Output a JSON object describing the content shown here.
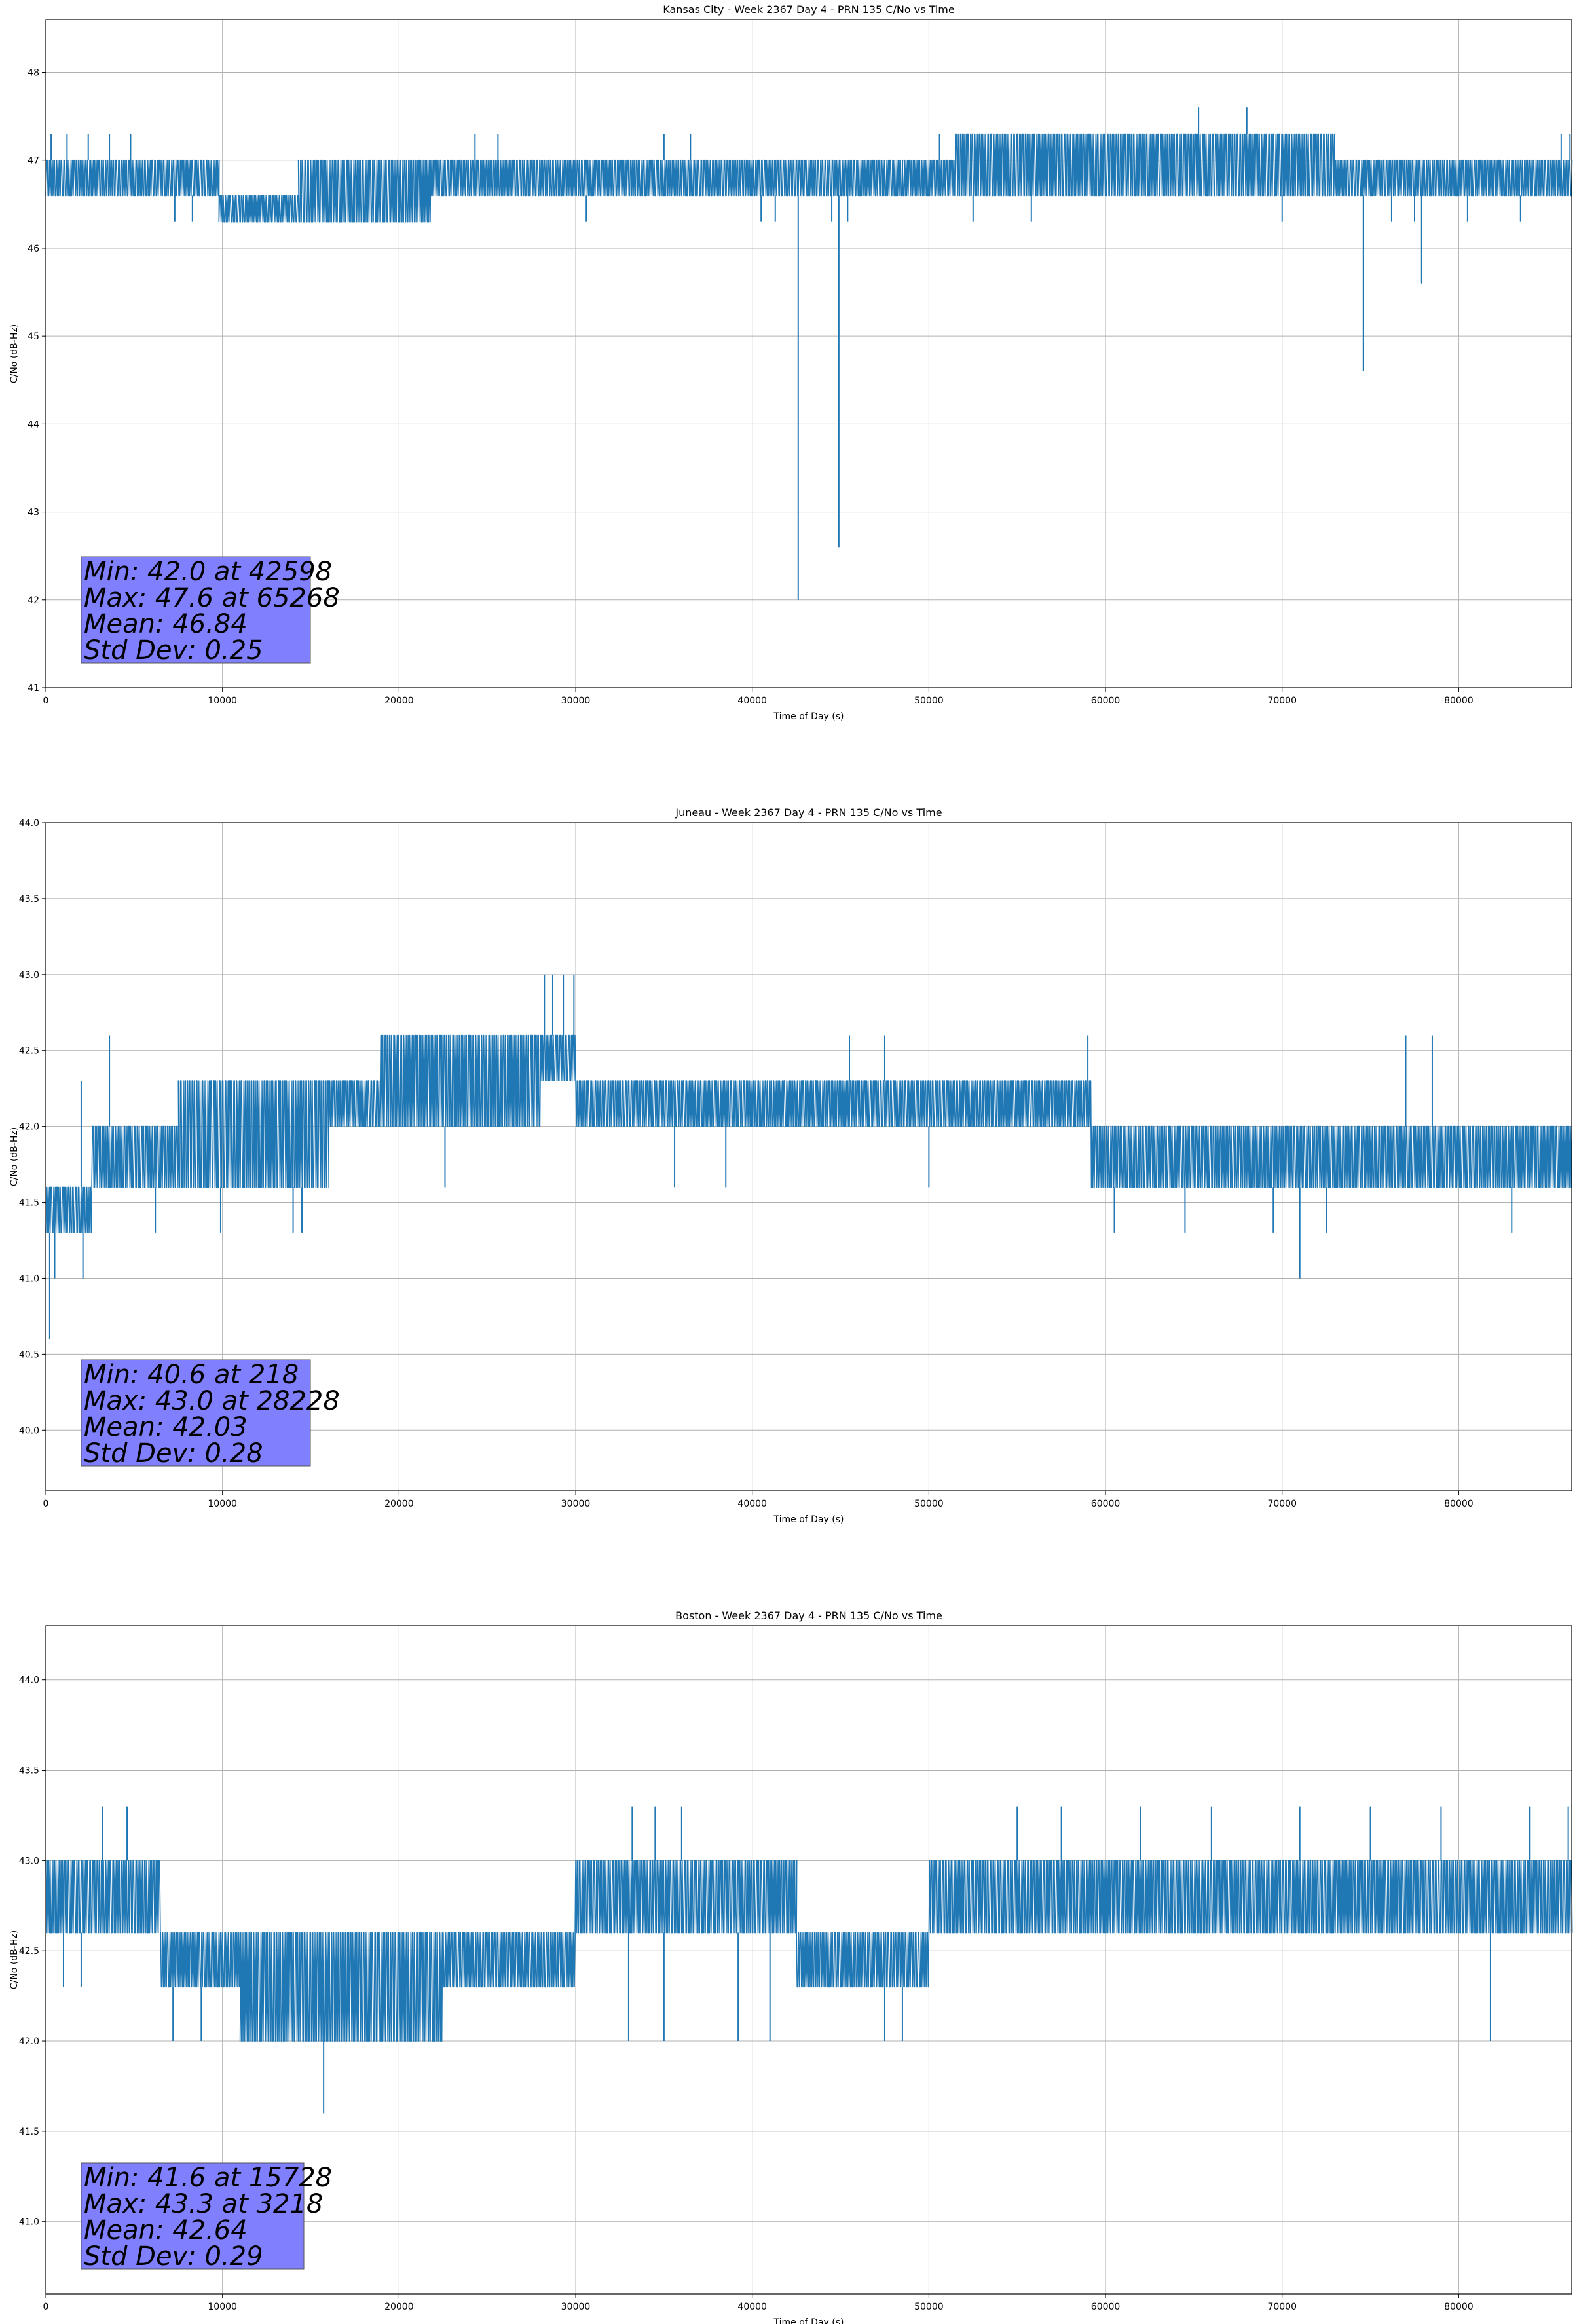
{
  "chart_data": [
    {
      "type": "line",
      "title": "Kansas City - Week 2367 Day 4 - PRN 135 C/No vs Time",
      "xlabel": "Time of Day (s)",
      "ylabel": "C/No (dB-Hz)",
      "xlim": [
        0,
        86400
      ],
      "ylim": [
        41,
        48.6
      ],
      "xticks": [
        0,
        10000,
        20000,
        30000,
        40000,
        50000,
        60000,
        70000,
        80000
      ],
      "xtick_labels": [
        "0",
        "10000",
        "20000",
        "30000",
        "40000",
        "50000",
        "60000",
        "70000",
        "80000"
      ],
      "yticks": [
        41,
        42,
        43,
        44,
        45,
        46,
        47,
        48
      ],
      "ytick_labels": [
        "41",
        "42",
        "43",
        "44",
        "45",
        "46",
        "47",
        "48"
      ],
      "grid": true,
      "series": [
        {
          "name": "C/No",
          "color": "#1f77b4",
          "bands": [
            {
              "x0": 0,
              "x1": 7000,
              "lo": 46.6,
              "hi": 47.0
            },
            {
              "x0": 7000,
              "x1": 9800,
              "lo": 46.6,
              "hi": 47.0
            },
            {
              "x0": 9800,
              "x1": 14300,
              "lo": 46.3,
              "hi": 46.6
            },
            {
              "x0": 14300,
              "x1": 21800,
              "lo": 46.3,
              "hi": 47.0
            },
            {
              "x0": 21800,
              "x1": 48500,
              "lo": 46.6,
              "hi": 47.0
            },
            {
              "x0": 48500,
              "x1": 51500,
              "lo": 46.6,
              "hi": 47.0
            },
            {
              "x0": 51500,
              "x1": 73000,
              "lo": 46.6,
              "hi": 47.3
            },
            {
              "x0": 73000,
              "x1": 86400,
              "lo": 46.6,
              "hi": 47.0
            }
          ],
          "spikes": [
            {
              "x": 300,
              "y": 47.3
            },
            {
              "x": 1200,
              "y": 47.3
            },
            {
              "x": 2400,
              "y": 47.3
            },
            {
              "x": 3600,
              "y": 47.3
            },
            {
              "x": 4800,
              "y": 47.3
            },
            {
              "x": 7300,
              "y": 46.3
            },
            {
              "x": 8300,
              "y": 46.3
            },
            {
              "x": 24300,
              "y": 47.3
            },
            {
              "x": 25600,
              "y": 47.3
            },
            {
              "x": 30600,
              "y": 46.3
            },
            {
              "x": 35000,
              "y": 47.3
            },
            {
              "x": 36500,
              "y": 47.3
            },
            {
              "x": 40500,
              "y": 46.3
            },
            {
              "x": 41300,
              "y": 46.3
            },
            {
              "x": 42598,
              "y": 42.0
            },
            {
              "x": 44500,
              "y": 46.3
            },
            {
              "x": 44900,
              "y": 42.6
            },
            {
              "x": 45400,
              "y": 46.3
            },
            {
              "x": 50600,
              "y": 47.3
            },
            {
              "x": 52500,
              "y": 46.3
            },
            {
              "x": 55800,
              "y": 46.3
            },
            {
              "x": 65268,
              "y": 47.6
            },
            {
              "x": 68000,
              "y": 47.6
            },
            {
              "x": 70000,
              "y": 46.3
            },
            {
              "x": 74600,
              "y": 44.6
            },
            {
              "x": 76200,
              "y": 46.3
            },
            {
              "x": 77500,
              "y": 46.3
            },
            {
              "x": 77900,
              "y": 45.6
            },
            {
              "x": 80500,
              "y": 46.3
            },
            {
              "x": 83500,
              "y": 46.3
            },
            {
              "x": 85800,
              "y": 47.3
            },
            {
              "x": 86300,
              "y": 47.3
            }
          ]
        }
      ],
      "annotation": {
        "lines": [
          "Min: 42.0 at 42598",
          "Max: 47.6 at 65268",
          "Mean: 46.84",
          "Std Dev: 0.25"
        ],
        "placement": "bottom-left"
      }
    },
    {
      "type": "line",
      "title": "Juneau - Week 2367 Day 4 - PRN 135 C/No vs Time",
      "xlabel": "Time of Day (s)",
      "ylabel": "C/No (dB-Hz)",
      "xlim": [
        0,
        86400
      ],
      "ylim": [
        39.6,
        44.0
      ],
      "xticks": [
        0,
        10000,
        20000,
        30000,
        40000,
        50000,
        60000,
        70000,
        80000
      ],
      "xtick_labels": [
        "0",
        "10000",
        "20000",
        "30000",
        "40000",
        "50000",
        "60000",
        "70000",
        "80000"
      ],
      "yticks": [
        40.0,
        40.5,
        41.0,
        41.5,
        42.0,
        42.5,
        43.0,
        43.5,
        44.0
      ],
      "ytick_labels": [
        "40.0",
        "40.5",
        "41.0",
        "41.5",
        "42.0",
        "42.5",
        "43.0",
        "43.5",
        "44.0"
      ],
      "grid": true,
      "series": [
        {
          "name": "C/No",
          "color": "#1f77b4",
          "bands": [
            {
              "x0": 0,
              "x1": 2600,
              "lo": 41.3,
              "hi": 41.6
            },
            {
              "x0": 2600,
              "x1": 7500,
              "lo": 41.6,
              "hi": 42.0
            },
            {
              "x0": 7500,
              "x1": 16000,
              "lo": 41.6,
              "hi": 42.3
            },
            {
              "x0": 16000,
              "x1": 19000,
              "lo": 42.0,
              "hi": 42.3
            },
            {
              "x0": 19000,
              "x1": 28000,
              "lo": 42.0,
              "hi": 42.6
            },
            {
              "x0": 28000,
              "x1": 30000,
              "lo": 42.3,
              "hi": 42.6
            },
            {
              "x0": 30000,
              "x1": 59200,
              "lo": 42.0,
              "hi": 42.3
            },
            {
              "x0": 59200,
              "x1": 86400,
              "lo": 41.6,
              "hi": 42.0
            }
          ],
          "spikes": [
            {
              "x": 218,
              "y": 40.6
            },
            {
              "x": 500,
              "y": 41.0
            },
            {
              "x": 2100,
              "y": 41.0
            },
            {
              "x": 2000,
              "y": 42.3
            },
            {
              "x": 3600,
              "y": 42.6
            },
            {
              "x": 6200,
              "y": 41.3
            },
            {
              "x": 9900,
              "y": 41.3
            },
            {
              "x": 14000,
              "y": 41.3
            },
            {
              "x": 14500,
              "y": 41.3
            },
            {
              "x": 21200,
              "y": 42.6
            },
            {
              "x": 22600,
              "y": 41.6
            },
            {
              "x": 28228,
              "y": 43.0
            },
            {
              "x": 28700,
              "y": 43.0
            },
            {
              "x": 29300,
              "y": 43.0
            },
            {
              "x": 29900,
              "y": 43.0
            },
            {
              "x": 35600,
              "y": 41.6
            },
            {
              "x": 38500,
              "y": 41.6
            },
            {
              "x": 45500,
              "y": 42.6
            },
            {
              "x": 47500,
              "y": 42.6
            },
            {
              "x": 50000,
              "y": 41.6
            },
            {
              "x": 59000,
              "y": 42.6
            },
            {
              "x": 60500,
              "y": 41.3
            },
            {
              "x": 64500,
              "y": 41.3
            },
            {
              "x": 69500,
              "y": 41.3
            },
            {
              "x": 71000,
              "y": 41.0
            },
            {
              "x": 72500,
              "y": 41.3
            },
            {
              "x": 77000,
              "y": 42.6
            },
            {
              "x": 78500,
              "y": 42.6
            },
            {
              "x": 83000,
              "y": 41.3
            }
          ]
        }
      ],
      "annotation": {
        "lines": [
          "Min: 40.6 at 218",
          "Max: 43.0 at 28228",
          "Mean: 42.03",
          "Std Dev: 0.28"
        ],
        "placement": "bottom-left"
      }
    },
    {
      "type": "line",
      "title": "Boston - Week 2367 Day 4 - PRN 135 C/No vs Time",
      "xlabel": "Time of Day (s)",
      "ylabel": "C/No (dB-Hz)",
      "xlim": [
        0,
        86400
      ],
      "ylim": [
        40.6,
        44.3
      ],
      "xticks": [
        0,
        10000,
        20000,
        30000,
        40000,
        50000,
        60000,
        70000,
        80000
      ],
      "xtick_labels": [
        "0",
        "10000",
        "20000",
        "30000",
        "40000",
        "50000",
        "60000",
        "70000",
        "80000"
      ],
      "yticks": [
        41.0,
        41.5,
        42.0,
        42.5,
        43.0,
        43.5,
        44.0
      ],
      "ytick_labels": [
        "41.0",
        "41.5",
        "42.0",
        "42.5",
        "43.0",
        "43.5",
        "44.0"
      ],
      "grid": true,
      "series": [
        {
          "name": "C/No",
          "color": "#1f77b4",
          "bands": [
            {
              "x0": 0,
              "x1": 6500,
              "lo": 42.6,
              "hi": 43.0
            },
            {
              "x0": 6500,
              "x1": 11000,
              "lo": 42.3,
              "hi": 42.6
            },
            {
              "x0": 11000,
              "x1": 22500,
              "lo": 42.0,
              "hi": 42.6
            },
            {
              "x0": 22500,
              "x1": 30000,
              "lo": 42.3,
              "hi": 42.6
            },
            {
              "x0": 30000,
              "x1": 42500,
              "lo": 42.6,
              "hi": 43.0
            },
            {
              "x0": 42500,
              "x1": 50000,
              "lo": 42.3,
              "hi": 42.6
            },
            {
              "x0": 50000,
              "x1": 86400,
              "lo": 42.6,
              "hi": 43.0
            }
          ],
          "spikes": [
            {
              "x": 3218,
              "y": 43.3
            },
            {
              "x": 4600,
              "y": 43.3
            },
            {
              "x": 1000,
              "y": 42.3
            },
            {
              "x": 2000,
              "y": 42.3
            },
            {
              "x": 7200,
              "y": 42.0
            },
            {
              "x": 8800,
              "y": 42.0
            },
            {
              "x": 15728,
              "y": 41.6
            },
            {
              "x": 33000,
              "y": 42.0
            },
            {
              "x": 35000,
              "y": 42.0
            },
            {
              "x": 33200,
              "y": 43.3
            },
            {
              "x": 34500,
              "y": 43.3
            },
            {
              "x": 36000,
              "y": 43.3
            },
            {
              "x": 39200,
              "y": 42.0
            },
            {
              "x": 41000,
              "y": 42.0
            },
            {
              "x": 47500,
              "y": 42.0
            },
            {
              "x": 48500,
              "y": 42.0
            },
            {
              "x": 55000,
              "y": 43.3
            },
            {
              "x": 57500,
              "y": 43.3
            },
            {
              "x": 62000,
              "y": 43.3
            },
            {
              "x": 66000,
              "y": 43.3
            },
            {
              "x": 71000,
              "y": 43.3
            },
            {
              "x": 75000,
              "y": 43.3
            },
            {
              "x": 79000,
              "y": 43.3
            },
            {
              "x": 81800,
              "y": 42.0
            },
            {
              "x": 84000,
              "y": 43.3
            },
            {
              "x": 86200,
              "y": 43.3
            }
          ]
        }
      ],
      "annotation": {
        "lines": [
          "Min: 41.6 at 15728",
          "Max: 43.3 at 3218",
          "Mean: 42.64",
          "Std Dev: 0.29"
        ],
        "placement": "bottom-left"
      }
    }
  ]
}
